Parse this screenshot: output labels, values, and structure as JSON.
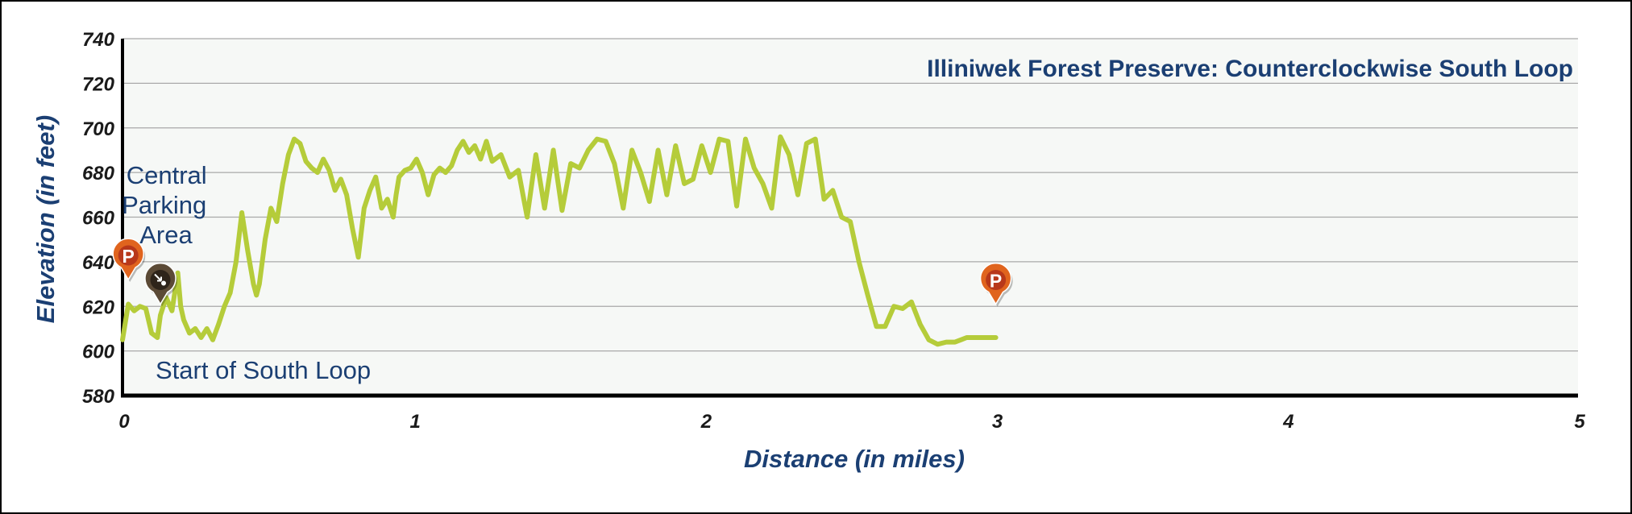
{
  "chart_data": {
    "type": "line",
    "title": "Illiniwek Forest Preserve: Counterclockwise South Loop",
    "xlabel": "Distance (in miles)",
    "ylabel": "Elevation (in feet)",
    "xlim": [
      0,
      5
    ],
    "ylim": [
      580,
      740
    ],
    "xticks": [
      "0",
      "1",
      "2",
      "3",
      "4",
      "5"
    ],
    "yticks": [
      "580",
      "600",
      "620",
      "640",
      "660",
      "680",
      "700",
      "720",
      "740"
    ],
    "grid": "horizontal",
    "legend": "none",
    "colors": {
      "line": "#b5cc3a",
      "text": "#1b3f73",
      "grid": "#a9a9a9",
      "plot_bg": "#f6f8f6",
      "parking_marker": "#e0641e",
      "trailhead_marker": "#5b4a36"
    },
    "series": [
      {
        "x": [
          0,
          0.02,
          0.04,
          0.06,
          0.08,
          0.1,
          0.12,
          0.13,
          0.15,
          0.17,
          0.19,
          0.2,
          0.21,
          0.23,
          0.25,
          0.27,
          0.29,
          0.31,
          0.33,
          0.35,
          0.37,
          0.39,
          0.41,
          0.43,
          0.45,
          0.46,
          0.47,
          0.49,
          0.51,
          0.53,
          0.55,
          0.57,
          0.59,
          0.61,
          0.63,
          0.65,
          0.67,
          0.69,
          0.71,
          0.73,
          0.75,
          0.77,
          0.79,
          0.81,
          0.83,
          0.85,
          0.87,
          0.89,
          0.91,
          0.93,
          0.94,
          0.95,
          0.97,
          0.99,
          1.01,
          1.03,
          1.05,
          1.07,
          1.09,
          1.11,
          1.13,
          1.15,
          1.17,
          1.19,
          1.21,
          1.23,
          1.25,
          1.27,
          1.3,
          1.33,
          1.36,
          1.39,
          1.42,
          1.45,
          1.48,
          1.51,
          1.54,
          1.57,
          1.6,
          1.63,
          1.66,
          1.69,
          1.72,
          1.75,
          1.78,
          1.81,
          1.84,
          1.87,
          1.9,
          1.93,
          1.96,
          1.99,
          2.02,
          2.05,
          2.08,
          2.11,
          2.14,
          2.17,
          2.2,
          2.23,
          2.26,
          2.29,
          2.32,
          2.35,
          2.38,
          2.41,
          2.44,
          2.47,
          2.5,
          2.53,
          2.56,
          2.59,
          2.62,
          2.65,
          2.68,
          2.71,
          2.74,
          2.77,
          2.8,
          2.83,
          2.86,
          2.88,
          2.9,
          2.92,
          2.94,
          2.96,
          2.98,
          3.0
        ],
        "y": [
          605,
          621,
          618,
          620,
          619,
          608,
          606,
          616,
          624,
          618,
          635,
          620,
          614,
          608,
          610,
          606,
          610,
          605,
          612,
          620,
          626,
          640,
          662,
          645,
          630,
          625,
          630,
          650,
          664,
          658,
          675,
          688,
          695,
          693,
          685,
          682,
          680,
          686,
          681,
          672,
          677,
          670,
          655,
          642,
          664,
          672,
          678,
          664,
          668,
          660,
          670,
          678,
          681,
          682,
          686,
          680,
          670,
          679,
          682,
          680,
          683,
          690,
          694,
          689,
          692,
          686,
          694,
          685,
          688,
          678,
          681,
          660,
          688,
          664,
          690,
          663,
          684,
          682,
          690,
          695,
          694,
          684,
          664,
          690,
          680,
          667,
          690,
          670,
          692,
          675,
          677,
          692,
          680,
          695,
          694,
          665,
          695,
          682,
          675,
          664,
          696,
          688,
          670,
          693,
          695,
          668,
          672,
          660,
          658,
          640,
          625,
          611,
          611,
          620,
          619,
          622,
          612,
          605,
          603,
          604,
          604,
          605,
          606,
          606,
          606,
          606,
          606,
          606
        ]
      }
    ],
    "annotations": [
      {
        "label": "Central Parking Area",
        "lines": [
          "Central",
          "Parking",
          "Area"
        ],
        "x": 0.02,
        "y": 632,
        "marker": "parking",
        "marker_text": "P"
      },
      {
        "label": "Start of South Loop",
        "x": 0.13,
        "y": 621,
        "marker": "trailhead"
      },
      {
        "label": "",
        "x": 3.0,
        "y": 621,
        "marker": "parking",
        "marker_text": "P"
      }
    ]
  }
}
